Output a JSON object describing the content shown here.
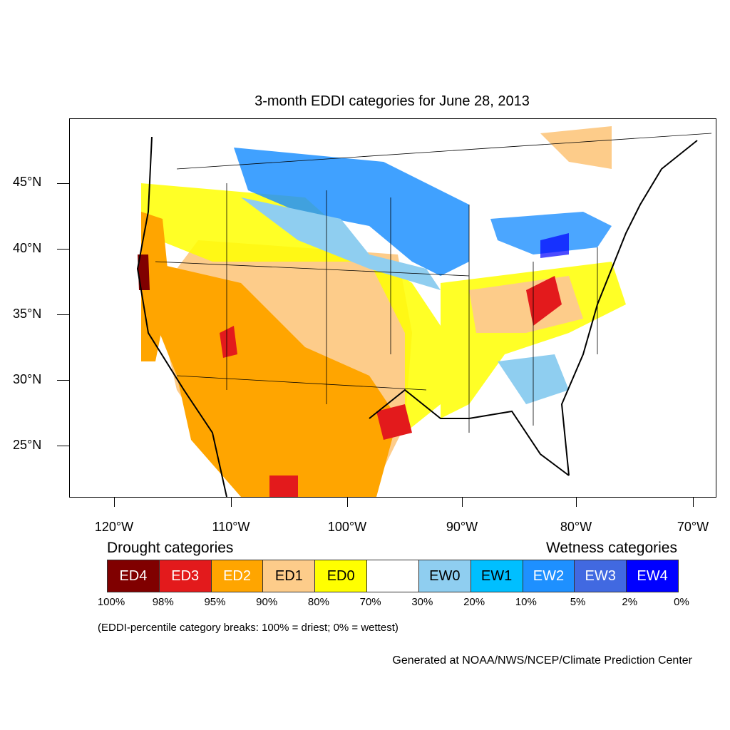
{
  "title": "3-month EDDI categories for June 28, 2013",
  "lat_labels": [
    "45°N",
    "40°N",
    "35°N",
    "30°N",
    "25°N"
  ],
  "lon_labels": [
    "120°W",
    "110°W",
    "100°W",
    "90°W",
    "80°W",
    "70°W"
  ],
  "legend": {
    "drought_heading": "Drought categories",
    "wetness_heading": "Wetness categories",
    "categories": [
      {
        "label": "ED4",
        "color": "#800000"
      },
      {
        "label": "ED3",
        "color": "#e31a1c"
      },
      {
        "label": "ED2",
        "color": "#ffa500"
      },
      {
        "label": "ED1",
        "color": "#fdcc8a"
      },
      {
        "label": "ED0",
        "color": "#ffff00"
      },
      {
        "label": "",
        "color": "#ffffff"
      },
      {
        "label": "EW0",
        "color": "#8fcef0"
      },
      {
        "label": "EW1",
        "color": "#00bfff"
      },
      {
        "label": "EW2",
        "color": "#1e90ff"
      },
      {
        "label": "EW3",
        "color": "#4169e1"
      },
      {
        "label": "EW4",
        "color": "#0000ff"
      }
    ],
    "breaks": [
      "100%",
      "98%",
      "95%",
      "90%",
      "80%",
      "70%",
      "30%",
      "20%",
      "10%",
      "5%",
      "2%",
      "0%"
    ]
  },
  "note": "(EDDI-percentile category breaks: 100% = driest; 0% = wettest)",
  "credit": "Generated at NOAA/NWS/NCEP/Climate Prediction Center"
}
